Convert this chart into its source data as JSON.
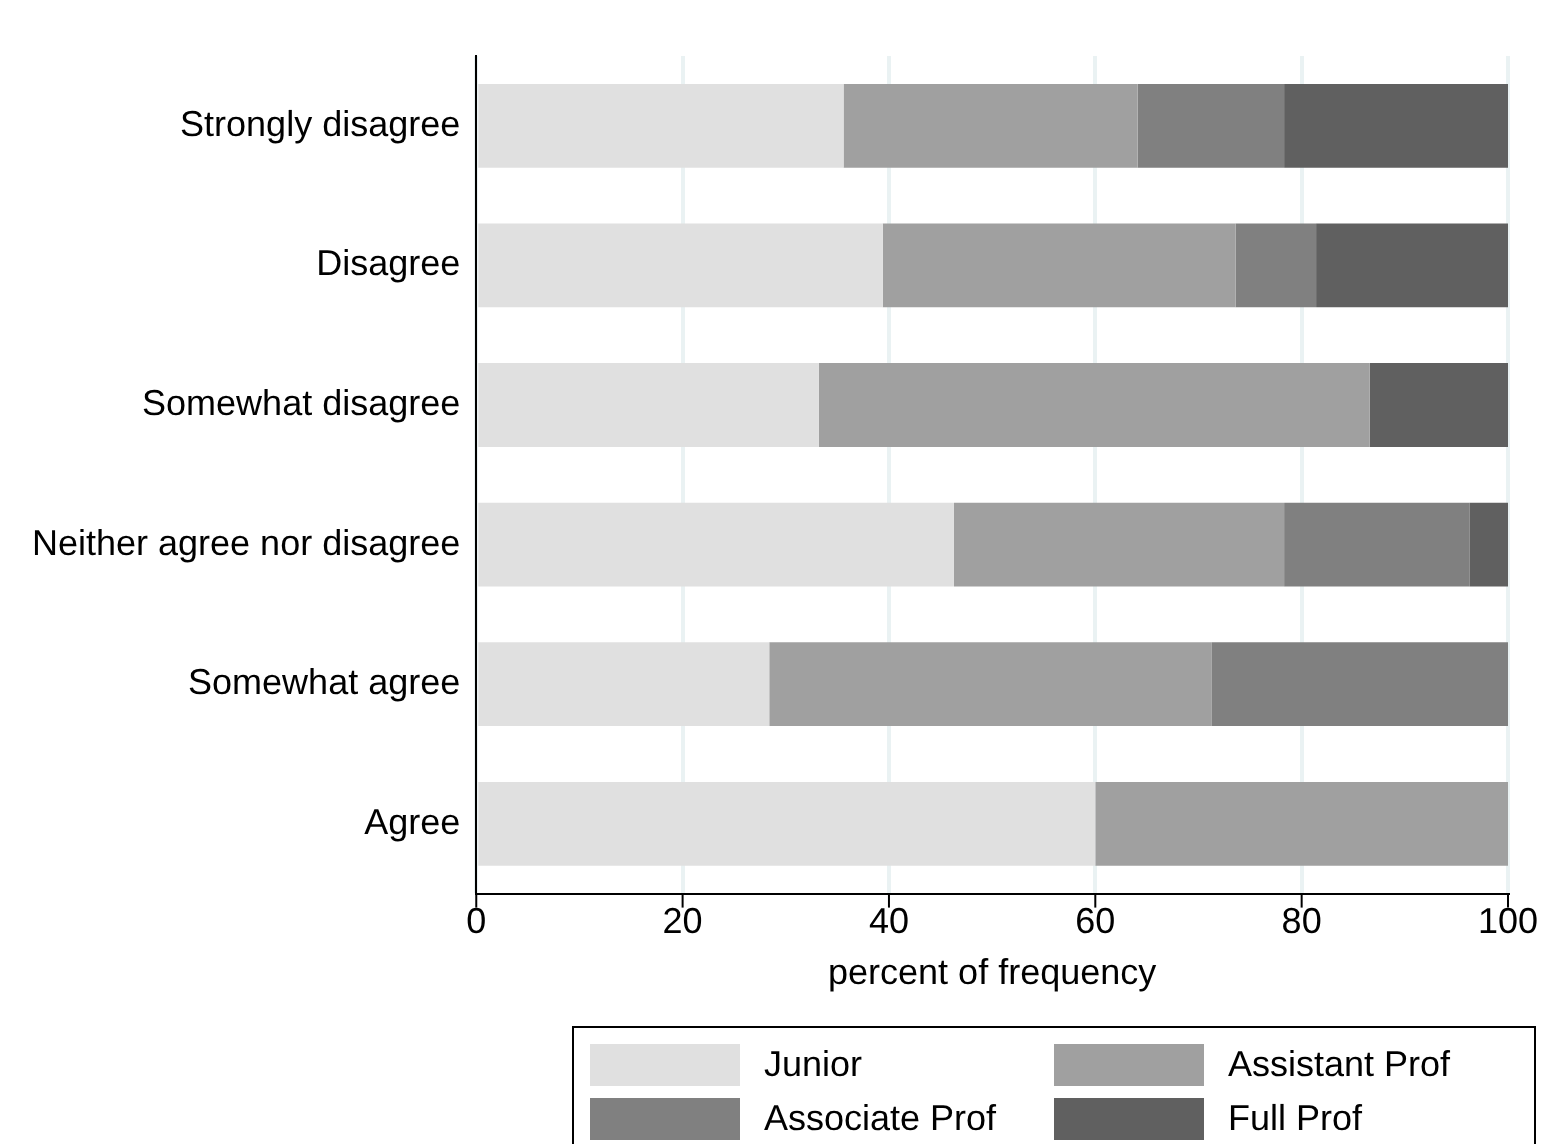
{
  "chart_data": {
    "type": "bar",
    "orientation": "horizontal",
    "stacked": true,
    "xlabel": "percent of frequency",
    "categories": [
      "Strongly disagree",
      "Disagree",
      "Somewhat disagree",
      "Neither agree nor disagree",
      "Somewhat agree",
      "Agree"
    ],
    "series": [
      {
        "name": "Junior",
        "color": "#e0e0e0",
        "values": [
          35.6,
          39.4,
          33.2,
          46.3,
          28.4,
          60
        ]
      },
      {
        "name": "Assistant Prof",
        "color": "#a0a0a0",
        "values": [
          28.5,
          34.2,
          53.4,
          32.0,
          42.9,
          40
        ]
      },
      {
        "name": "Associate Prof",
        "color": "#808080",
        "values": [
          14.2,
          7.8,
          0,
          18.0,
          28.7,
          0
        ]
      },
      {
        "name": "Full Prof",
        "color": "#606060",
        "values": [
          21.7,
          18.6,
          13.4,
          3.7,
          0,
          0
        ]
      }
    ],
    "xlim": [
      0,
      100
    ],
    "xticks": [
      0,
      20,
      40,
      60,
      80,
      100
    ],
    "grid": "x",
    "legend": "bottom"
  }
}
